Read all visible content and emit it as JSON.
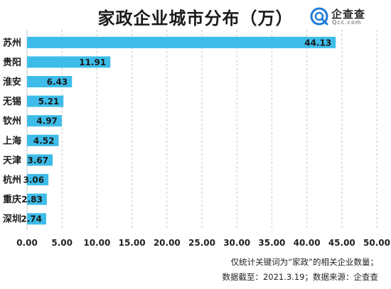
{
  "title": "家政企业城市分布（万）",
  "logo": {
    "name": "企查查",
    "domain": "Qcc.com"
  },
  "footnotes": [
    "仅统计关键词为“家政”的相关企业数量；",
    "数据截至：2021.3.19；数据来源：企查查"
  ],
  "colors": {
    "bar": "#3dbce9",
    "gridline": "#c8c8c8",
    "logo_ring": "#1f7bd8"
  },
  "chart_data": {
    "type": "bar",
    "orientation": "horizontal",
    "title": "家政企业城市分布（万）",
    "categories": [
      "苏州",
      "贵阳",
      "淮安",
      "无锡",
      "钦州",
      "上海",
      "天津",
      "杭州",
      "重庆",
      "深圳"
    ],
    "values": [
      44.13,
      11.91,
      6.43,
      5.21,
      4.97,
      4.52,
      3.67,
      3.06,
      2.83,
      2.74
    ],
    "value_labels": [
      "44.13",
      "11.91",
      "6.43",
      "5.21",
      "4.97",
      "4.52",
      "3.67",
      "3.06",
      "2.83",
      "2.74"
    ],
    "xlim": [
      0,
      50
    ],
    "xticks": [
      "0.00",
      "5.00",
      "10.00",
      "15.00",
      "20.00",
      "25.00",
      "30.00",
      "35.00",
      "40.00",
      "45.00",
      "50.00"
    ],
    "xlabel": "",
    "ylabel": "",
    "grid": "vertical dashed"
  }
}
